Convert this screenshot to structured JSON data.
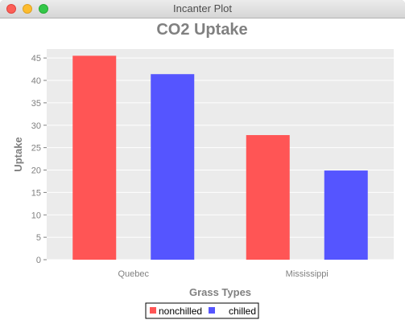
{
  "window": {
    "title": "Incanter Plot"
  },
  "colors": {
    "plot_background": "#ebebeb",
    "gridline": "#ffffff",
    "title_text": "#808080",
    "axis_text": "#808080"
  },
  "chart_data": {
    "type": "bar",
    "title": "CO2 Uptake",
    "xlabel": "Grass Types",
    "ylabel": "Uptake",
    "categories": [
      "Quebec",
      "Mississippi"
    ],
    "series": [
      {
        "name": "nonchilled",
        "color": "#ff5555",
        "values": [
          45.5,
          27.8
        ]
      },
      {
        "name": "chilled",
        "color": "#5555ff",
        "values": [
          41.4,
          19.9
        ]
      }
    ],
    "ylim": [
      0,
      47
    ],
    "yticks": [
      0,
      5,
      10,
      15,
      20,
      25,
      30,
      35,
      40,
      45
    ],
    "grid": true,
    "legend_position": "bottom"
  }
}
